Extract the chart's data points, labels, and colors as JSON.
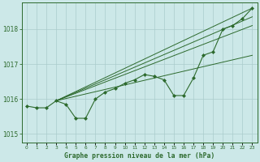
{
  "title": "Graphe pression niveau de la mer (hPa)",
  "bg_color": "#cce8e8",
  "grid_color": "#aacccc",
  "line_color": "#2d6a2d",
  "marker_color": "#2d6a2d",
  "x_ticks": [
    0,
    1,
    2,
    3,
    4,
    5,
    6,
    7,
    8,
    9,
    10,
    11,
    12,
    13,
    14,
    15,
    16,
    17,
    18,
    19,
    20,
    21,
    22,
    23
  ],
  "ylim": [
    1014.75,
    1018.75
  ],
  "yticks": [
    1015,
    1016,
    1017,
    1018
  ],
  "figsize": [
    3.2,
    2.0
  ],
  "dpi": 100,
  "main_line": [
    1015.8,
    1015.75,
    1015.75,
    1015.95,
    1015.85,
    1015.45,
    1015.45,
    1016.0,
    1016.2,
    1016.3,
    1016.45,
    1016.55,
    1016.7,
    1016.65,
    1016.55,
    1016.1,
    1016.1,
    1016.6,
    1017.25,
    1017.35,
    1018.0,
    1018.1,
    1018.3,
    1018.6
  ],
  "straight_lines": [
    {
      "x": [
        3,
        23
      ],
      "y": [
        1015.95,
        1018.6
      ]
    },
    {
      "x": [
        3,
        23
      ],
      "y": [
        1015.95,
        1018.35
      ]
    },
    {
      "x": [
        3,
        23
      ],
      "y": [
        1015.95,
        1018.1
      ]
    },
    {
      "x": [
        3,
        23
      ],
      "y": [
        1015.95,
        1017.25
      ]
    }
  ]
}
